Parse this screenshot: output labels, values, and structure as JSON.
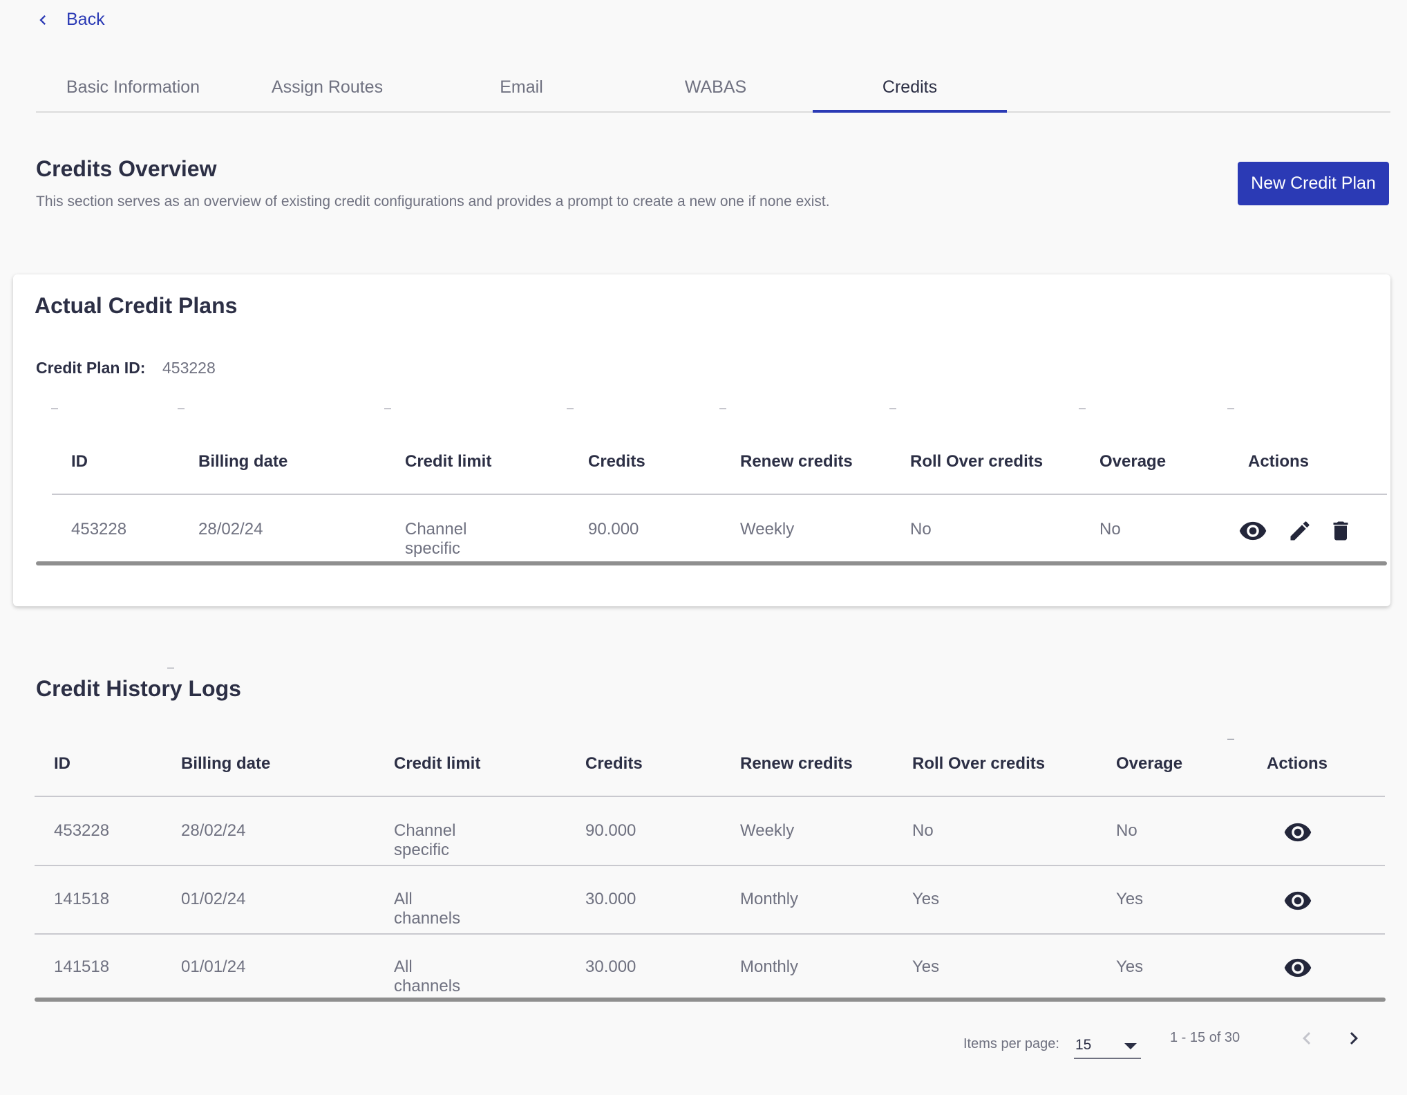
{
  "nav": {
    "back_label": "Back",
    "tabs": [
      {
        "label": "Basic Information"
      },
      {
        "label": "Assign Routes"
      },
      {
        "label": "Email"
      },
      {
        "label": "WABAS"
      },
      {
        "label": "Credits"
      }
    ],
    "active_tab": "Credits"
  },
  "overview": {
    "title": "Credits Overview",
    "description": "This section serves as an overview of existing credit configurations and provides a prompt to create a new one if none exist.",
    "new_button": "New Credit Plan"
  },
  "actual_plans": {
    "title": "Actual Credit Plans",
    "plan_id_label": "Credit Plan ID:",
    "plan_id_value": "453228",
    "columns": [
      "ID",
      "Billing date",
      "Credit limit",
      "Credits",
      "Renew credits",
      "Roll Over credits",
      "Overage",
      "Actions"
    ],
    "rows": [
      {
        "id": "453228",
        "billing_date": "28/02/24",
        "credit_limit": "Channel specific",
        "credits": "90.000",
        "renew": "Weekly",
        "rollover": "No",
        "overage": "No",
        "actions": [
          "eye-icon",
          "pencil-icon",
          "trash-icon"
        ]
      }
    ]
  },
  "history": {
    "title": "Credit History Logs",
    "columns": [
      "ID",
      "Billing date",
      "Credit limit",
      "Credits",
      "Renew credits",
      "Roll Over credits",
      "Overage",
      "Actions"
    ],
    "rows": [
      {
        "id": "453228",
        "billing_date": "28/02/24",
        "credit_limit": "Channel specific",
        "credits": "90.000",
        "renew": "Weekly",
        "rollover": "No",
        "overage": "No",
        "actions": [
          "eye-icon"
        ]
      },
      {
        "id": "141518",
        "billing_date": "01/02/24",
        "credit_limit": "All channels",
        "credits": "30.000",
        "renew": "Monthly",
        "rollover": "Yes",
        "overage": "Yes",
        "actions": [
          "eye-icon"
        ]
      },
      {
        "id": "141518",
        "billing_date": "01/01/24",
        "credit_limit": "All channels",
        "credits": "30.000",
        "renew": "Monthly",
        "rollover": "Yes",
        "overage": "Yes",
        "actions": [
          "eye-icon"
        ]
      }
    ]
  },
  "paginator": {
    "items_per_page_label": "Items per page:",
    "items_per_page_value": "15",
    "range_label": "1 - 15 of 30"
  },
  "colors": {
    "accent": "#2b3ab5",
    "text": "#2c2f45",
    "muted": "#6f7180",
    "background": "#f9f9f9"
  }
}
